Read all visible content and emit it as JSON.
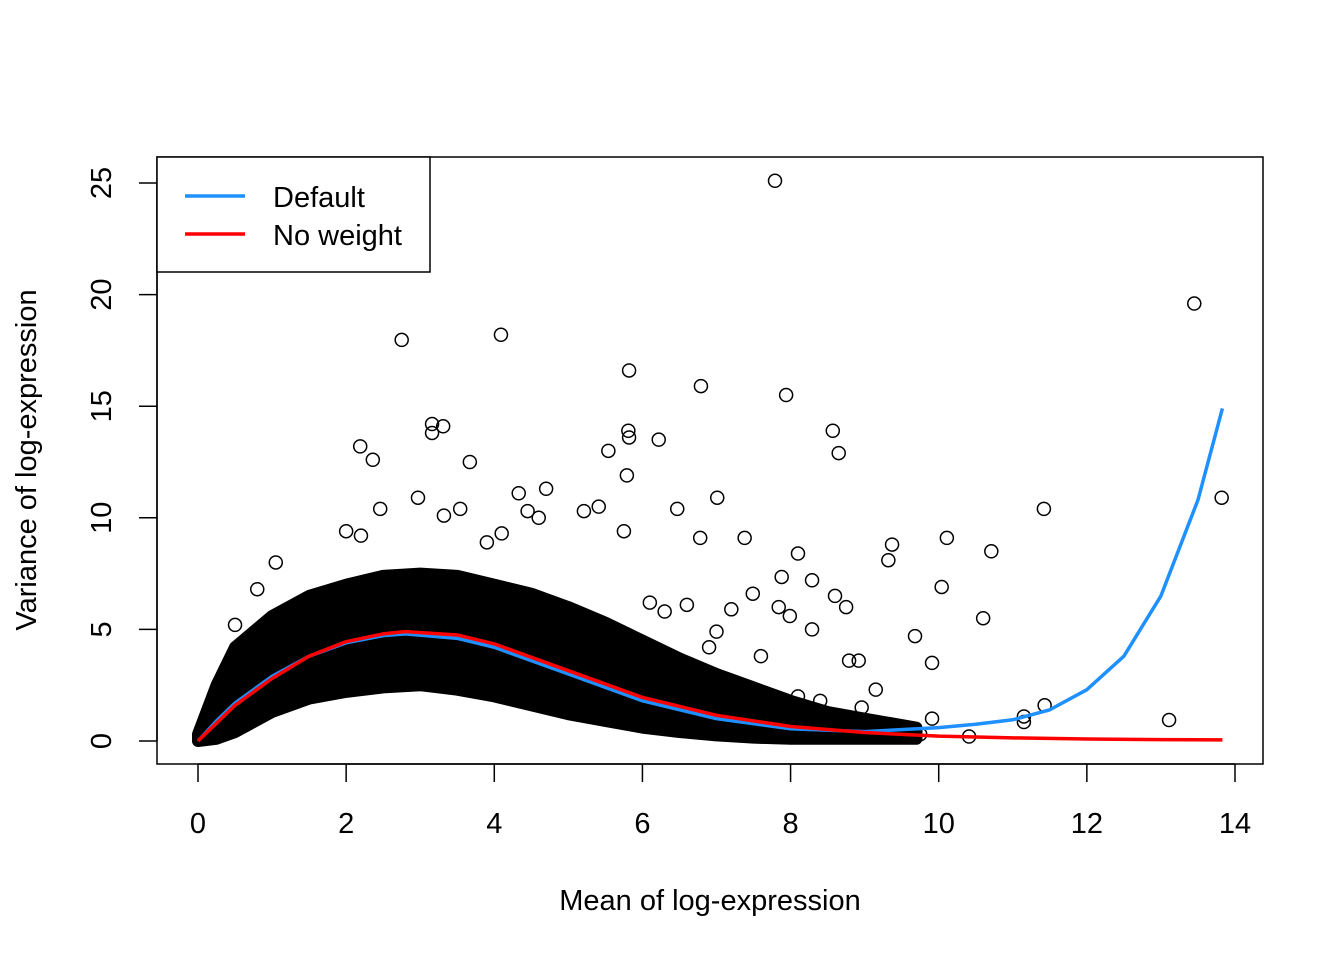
{
  "chart_data": {
    "type": "scatter",
    "title": "",
    "xlabel": "Mean of log-expression",
    "ylabel": "Variance of log-expression",
    "xlim": [
      0,
      14
    ],
    "ylim": [
      0,
      25
    ],
    "xticks": [
      "0",
      "2",
      "4",
      "6",
      "8",
      "10",
      "12",
      "14"
    ],
    "yticks": [
      "0",
      "5",
      "10",
      "15",
      "20",
      "25"
    ],
    "grid": false,
    "legend": {
      "placement": "top-left",
      "entries": [
        {
          "label": "Default",
          "color": "#1E90FF"
        },
        {
          "label": "No weight",
          "color": "#FF0000"
        }
      ]
    },
    "dense_point_region": {
      "x": [
        0,
        0.25,
        0.5,
        1,
        1.5,
        2,
        2.5,
        3,
        3.5,
        4,
        4.5,
        5,
        5.5,
        6,
        6.5,
        7,
        7.5,
        8,
        8.5,
        9,
        9.7
      ],
      "upper": [
        0.3,
        2.5,
        4.2,
        5.6,
        6.5,
        7.0,
        7.4,
        7.5,
        7.4,
        7.0,
        6.6,
        6.0,
        5.3,
        4.5,
        3.7,
        3.0,
        2.4,
        1.8,
        1.3,
        1.0,
        0.6
      ],
      "lower": [
        0,
        0.1,
        0.4,
        1.3,
        1.9,
        2.2,
        2.4,
        2.5,
        2.3,
        2.0,
        1.6,
        1.2,
        0.9,
        0.6,
        0.4,
        0.25,
        0.15,
        0.1,
        0.1,
        0.1,
        0.1
      ]
    },
    "points": [
      [
        7.79,
        25.1
      ],
      [
        2.75,
        17.97
      ],
      [
        4.09,
        18.2
      ],
      [
        13.45,
        19.6
      ],
      [
        5.82,
        16.6
      ],
      [
        6.79,
        15.9
      ],
      [
        7.94,
        15.5
      ],
      [
        3.16,
        14.2
      ],
      [
        3.31,
        14.1
      ],
      [
        3.16,
        13.8
      ],
      [
        2.19,
        13.2
      ],
      [
        2.36,
        12.6
      ],
      [
        3.67,
        12.5
      ],
      [
        5.81,
        13.9
      ],
      [
        5.82,
        13.6
      ],
      [
        6.22,
        13.5
      ],
      [
        5.54,
        13.0
      ],
      [
        5.79,
        11.9
      ],
      [
        8.57,
        13.9
      ],
      [
        8.65,
        12.9
      ],
      [
        13.82,
        10.9
      ],
      [
        11.42,
        10.4
      ],
      [
        7.01,
        10.9
      ],
      [
        6.47,
        10.4
      ],
      [
        5.41,
        10.5
      ],
      [
        5.21,
        10.3
      ],
      [
        5.75,
        9.4
      ],
      [
        6.78,
        9.1
      ],
      [
        7.38,
        9.1
      ],
      [
        10.11,
        9.1
      ],
      [
        9.37,
        8.8
      ],
      [
        9.32,
        8.1
      ],
      [
        10.71,
        8.5
      ],
      [
        8.1,
        8.4
      ],
      [
        10.04,
        6.9
      ],
      [
        10.6,
        5.5
      ],
      [
        9.68,
        4.7
      ],
      [
        9.91,
        3.5
      ],
      [
        13.11,
        0.94
      ],
      [
        10.41,
        0.2
      ],
      [
        11.15,
        1.1
      ],
      [
        11.15,
        0.85
      ],
      [
        11.43,
        1.6
      ],
      [
        9.91,
        1.0
      ],
      [
        7.88,
        7.35
      ],
      [
        8.29,
        7.2
      ],
      [
        7.49,
        6.6
      ],
      [
        8.6,
        6.5
      ],
      [
        8.75,
        6.0
      ],
      [
        7.84,
        6.0
      ],
      [
        8.29,
        5.0
      ],
      [
        7.99,
        5.6
      ],
      [
        8.79,
        3.6
      ],
      [
        8.92,
        3.6
      ],
      [
        9.15,
        2.3
      ],
      [
        8.96,
        1.5
      ],
      [
        1.05,
        8.0
      ],
      [
        2.97,
        10.9
      ],
      [
        2.46,
        10.4
      ],
      [
        3.32,
        10.1
      ],
      [
        3.54,
        10.4
      ],
      [
        4.7,
        11.3
      ],
      [
        4.33,
        11.1
      ],
      [
        2.0,
        9.4
      ],
      [
        2.2,
        9.2
      ],
      [
        4.45,
        10.3
      ],
      [
        4.6,
        10.0
      ],
      [
        4.1,
        9.3
      ],
      [
        3.9,
        8.9
      ],
      [
        0.8,
        6.8
      ],
      [
        0.5,
        5.2
      ],
      [
        6.1,
        6.2
      ],
      [
        6.3,
        5.8
      ],
      [
        6.6,
        6.1
      ],
      [
        7.2,
        5.9
      ],
      [
        7.0,
        4.9
      ],
      [
        6.9,
        4.2
      ],
      [
        7.6,
        3.8
      ],
      [
        8.1,
        2.0
      ],
      [
        8.4,
        1.8
      ],
      [
        9.4,
        0.6
      ],
      [
        9.6,
        0.4
      ],
      [
        9.75,
        0.3
      ],
      [
        9.2,
        0.8
      ],
      [
        8.7,
        1.0
      ]
    ],
    "series": [
      {
        "name": "Default",
        "color": "#1E90FF",
        "x": [
          0,
          0.25,
          0.5,
          1,
          1.5,
          2,
          2.5,
          2.8,
          3.5,
          4,
          5,
          6,
          7,
          8,
          9,
          10,
          10.5,
          11,
          11.5,
          12,
          12.5,
          13,
          13.5,
          13.83
        ],
        "y": [
          0,
          0.9,
          1.7,
          2.9,
          3.8,
          4.4,
          4.72,
          4.8,
          4.6,
          4.2,
          3.0,
          1.8,
          1.0,
          0.55,
          0.42,
          0.6,
          0.75,
          0.95,
          1.4,
          2.3,
          3.8,
          6.5,
          10.8,
          14.9
        ]
      },
      {
        "name": "No weight",
        "color": "#FF0000",
        "x": [
          0,
          0.25,
          0.5,
          1,
          1.5,
          2,
          2.5,
          2.8,
          3.5,
          4,
          5,
          6,
          7,
          8,
          9,
          10,
          11,
          12,
          13,
          13.83
        ],
        "y": [
          0,
          0.8,
          1.6,
          2.8,
          3.8,
          4.45,
          4.8,
          4.9,
          4.75,
          4.35,
          3.15,
          1.95,
          1.15,
          0.65,
          0.38,
          0.22,
          0.14,
          0.09,
          0.06,
          0.05
        ]
      }
    ]
  }
}
